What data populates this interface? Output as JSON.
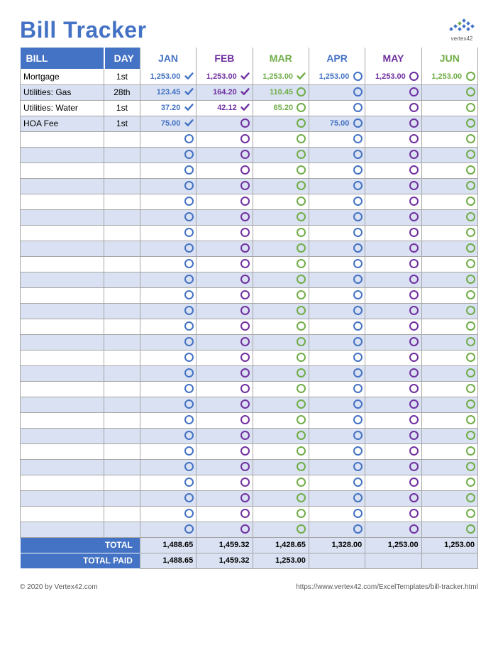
{
  "title": "Bill Tracker",
  "logo_text": "vertex42",
  "header": {
    "bill": "BILL",
    "day": "DAY",
    "months": [
      "JAN",
      "FEB",
      "MAR",
      "APR",
      "MAY",
      "JUN"
    ]
  },
  "colors": {
    "header_bg": "#4472c4",
    "header_fg": "#ffffff",
    "alt_row": "#d9e1f2",
    "border": "#a6a6a6",
    "title": "#4472c4",
    "footer_text": "#595959",
    "month_colors": [
      "#4472c4",
      "#7030a0",
      "#70ad47",
      "#4472c4",
      "#7030a0",
      "#70ad47"
    ]
  },
  "num_rows": 30,
  "rows": [
    {
      "bill": "Mortgage",
      "day": "1st",
      "cells": [
        {
          "amt": "1,253.00",
          "check": true
        },
        {
          "amt": "1,253.00",
          "check": true
        },
        {
          "amt": "1,253.00",
          "check": true
        },
        {
          "amt": "1,253.00",
          "check": false
        },
        {
          "amt": "1,253.00",
          "check": false
        },
        {
          "amt": "1,253.00",
          "check": false
        }
      ]
    },
    {
      "bill": "Utilities: Gas",
      "day": "28th",
      "cells": [
        {
          "amt": "123.45",
          "check": true
        },
        {
          "amt": "164.20",
          "check": true
        },
        {
          "amt": "110.45",
          "check": false
        },
        {
          "amt": "",
          "check": false
        },
        {
          "amt": "",
          "check": false
        },
        {
          "amt": "",
          "check": false
        }
      ]
    },
    {
      "bill": "Utilities: Water",
      "day": "1st",
      "cells": [
        {
          "amt": "37.20",
          "check": true
        },
        {
          "amt": "42.12",
          "check": true
        },
        {
          "amt": "65.20",
          "check": false
        },
        {
          "amt": "",
          "check": false
        },
        {
          "amt": "",
          "check": false
        },
        {
          "amt": "",
          "check": false
        }
      ]
    },
    {
      "bill": "HOA Fee",
      "day": "1st",
      "cells": [
        {
          "amt": "75.00",
          "check": true
        },
        {
          "amt": "",
          "check": false
        },
        {
          "amt": "",
          "check": false
        },
        {
          "amt": "75.00",
          "check": false
        },
        {
          "amt": "",
          "check": false
        },
        {
          "amt": "",
          "check": false
        }
      ]
    }
  ],
  "totals": {
    "total_label": "TOTAL",
    "paid_label": "TOTAL PAID",
    "total": [
      "1,488.65",
      "1,459.32",
      "1,428.65",
      "1,328.00",
      "1,253.00",
      "1,253.00"
    ],
    "paid": [
      "1,488.65",
      "1,459.32",
      "1,253.00",
      "",
      "",
      ""
    ]
  },
  "footer": {
    "left": "© 2020 by Vertex42.com",
    "right": "https://www.vertex42.com/ExcelTemplates/bill-tracker.html"
  },
  "layout": {
    "col_widths": {
      "bill": 116,
      "day": 50,
      "amt": 58,
      "sym": 20
    }
  }
}
